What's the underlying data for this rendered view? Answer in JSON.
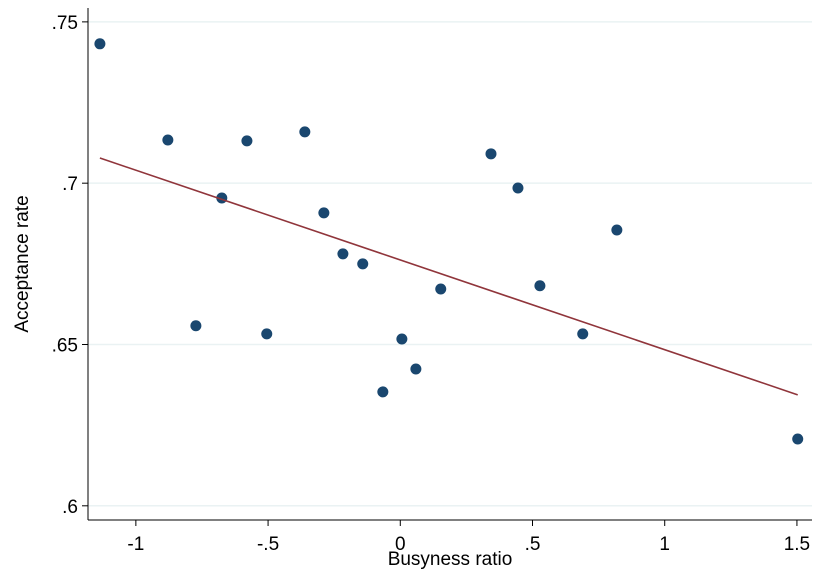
{
  "chart_data": {
    "type": "scatter",
    "x_label": "Busyness ratio",
    "y_label": "Acceptance rate",
    "points": {
      "color": "#1a476f",
      "x": [
        -1.136,
        -0.879,
        -0.58,
        -0.361,
        -0.675,
        -0.289,
        -0.217,
        -0.142,
        -0.773,
        -0.505,
        -0.066,
        0.006,
        0.059,
        0.153,
        0.343,
        0.445,
        0.528,
        0.69,
        0.819,
        1.503
      ],
      "y": [
        0.7432,
        0.7134,
        0.7131,
        0.7159,
        0.6954,
        0.6908,
        0.6781,
        0.675,
        0.6558,
        0.6533,
        0.6353,
        0.6517,
        0.6424,
        0.6672,
        0.7091,
        0.6985,
        0.6682,
        0.6533,
        0.6855,
        0.6207
      ]
    },
    "fit_line": {
      "color": "#90353b",
      "x": [
        -1.136,
        1.503
      ],
      "y": [
        0.7078,
        0.6344
      ]
    },
    "xlim": [
      -1.181,
      1.557
    ],
    "ylim": [
      0.5956,
      0.7543
    ],
    "xticks": [
      -1,
      {
        "value": -0.5,
        "label": "-.5"
      },
      0,
      {
        "value": 0.5,
        "label": ".5"
      },
      1,
      1.5
    ],
    "yticks": [
      {
        "value": 0.6,
        "label": ".6"
      },
      {
        "value": 0.65,
        "label": ".65"
      },
      {
        "value": 0.7,
        "label": ".7"
      },
      {
        "value": 0.75,
        "label": ".75"
      }
    ],
    "grid": true
  }
}
